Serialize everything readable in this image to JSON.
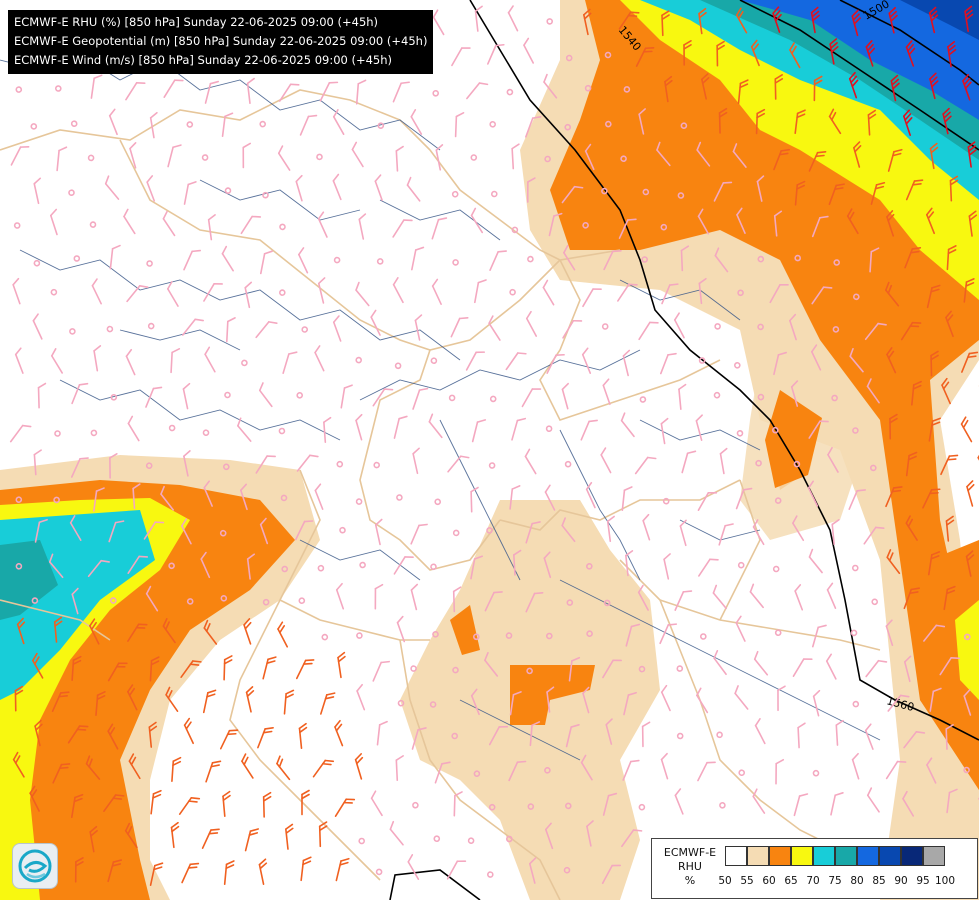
{
  "titles": [
    "ECMWF-E RHU (%) [850 hPa] Sunday 22-06-2025 09:00 (+45h)",
    "ECMWF-E Geopotential (m) [850 hPa] Sunday 22-06-2025 09:00 (+45h)",
    "ECMWF-E Wind (m/s) [850 hPa] Sunday 22-06-2025 09:00 (+45h)"
  ],
  "contour_labels": [
    "1540",
    "1500",
    "1560"
  ],
  "legend": {
    "title_lines": [
      "ECMWF-E",
      "RHU",
      "%"
    ],
    "ticks": [
      "50",
      "55",
      "60",
      "65",
      "70",
      "75",
      "80",
      "85",
      "90",
      "95",
      "100"
    ],
    "colors": [
      "#ffffff",
      "#f5dcb4",
      "#f88410",
      "#f8f810",
      "#18cdd8",
      "#18a8a8",
      "#1468e0",
      "#0848b0",
      "#082878",
      "#a8a8a8",
      "#585858"
    ]
  },
  "colors": {
    "land_border": "#e6c69a",
    "river": "#3d5a8a",
    "barb_light": "#f4a8c0",
    "barb_mid": "#f06020",
    "barb_strong": "#e01020",
    "contour": "#000000"
  },
  "logo_icon": "ecmwf-swirl-icon"
}
